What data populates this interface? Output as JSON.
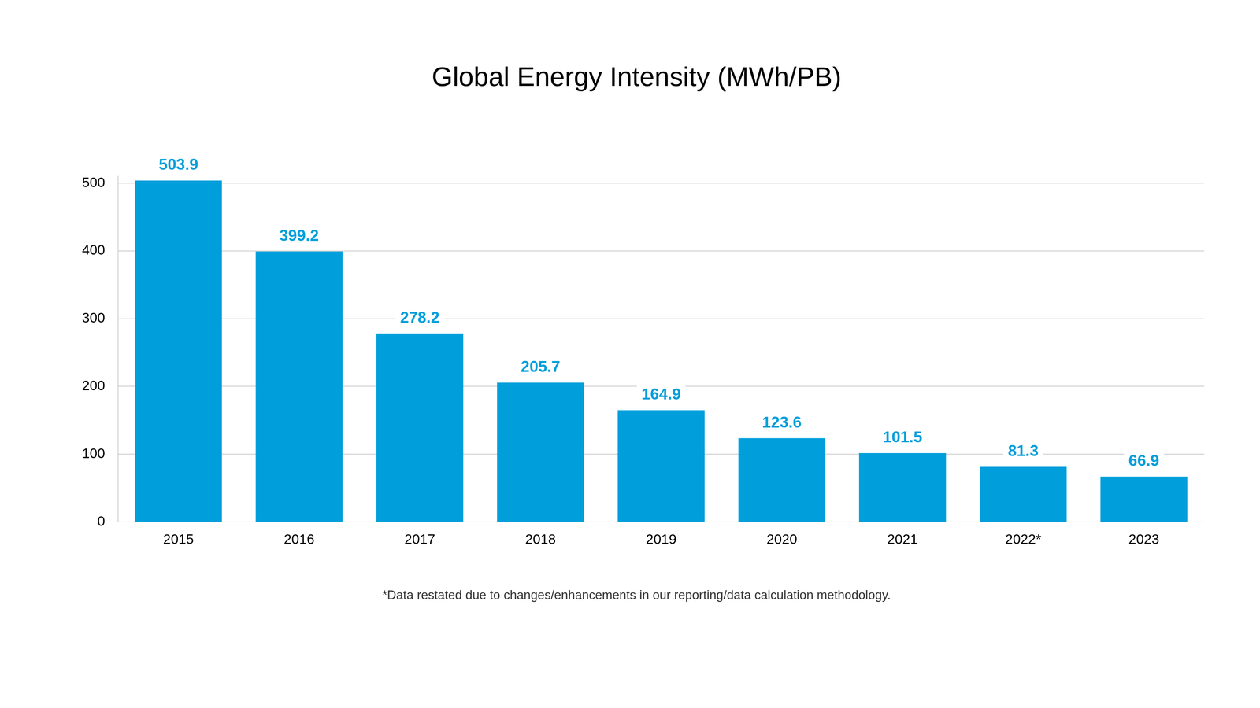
{
  "chart_data": {
    "type": "bar",
    "title": "Global Energy Intensity (MWh/PB)",
    "categories": [
      "2015",
      "2016",
      "2017",
      "2018",
      "2019",
      "2020",
      "2021",
      "2022*",
      "2023"
    ],
    "values": [
      503.9,
      399.2,
      278.2,
      205.7,
      164.9,
      123.6,
      101.5,
      81.3,
      66.9
    ],
    "color": "#009fdb",
    "ylim": [
      0,
      510
    ],
    "yticks": [
      0,
      100,
      200,
      300,
      400,
      500
    ],
    "grid": true,
    "data_labels": true,
    "annotations": [
      "*Data restated due to changes/enhancements in our reporting/data calculation methodology."
    ]
  }
}
